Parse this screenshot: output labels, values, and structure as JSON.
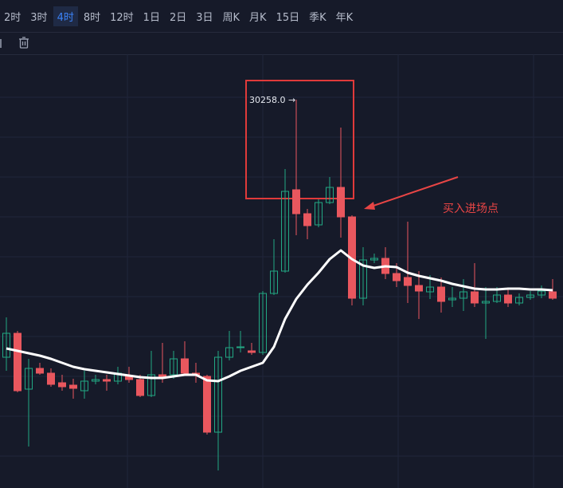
{
  "toolbar": {
    "intervals": [
      "2时",
      "3时",
      "4时",
      "8时",
      "12时",
      "1日",
      "2日",
      "3日",
      "周K",
      "月K",
      "15日",
      "季K",
      "年K"
    ],
    "active": 2
  },
  "chart_data": {
    "type": "candlestick",
    "open": [
      28320,
      28500,
      28080,
      28236,
      28200,
      28128,
      28110,
      28068,
      28140,
      28152,
      28140,
      28176,
      28152,
      28032,
      28188,
      28188,
      28308,
      28200,
      28176,
      27756,
      28320,
      28392,
      28368,
      28356,
      28800,
      28968,
      29580,
      29400,
      29316,
      29484,
      29598,
      29376,
      28764,
      29052,
      29064,
      28950,
      28920,
      28860,
      28812,
      28848,
      28752,
      28764,
      28812,
      28728,
      28740,
      28788,
      28728,
      28770,
      28788,
      28812
    ],
    "close": [
      28500,
      28068,
      28236,
      28200,
      28116,
      28098,
      28086,
      28140,
      28152,
      28140,
      28200,
      28152,
      28032,
      28188,
      28170,
      28308,
      28200,
      28188,
      27756,
      28320,
      28392,
      28398,
      28356,
      28800,
      28968,
      29568,
      29400,
      29310,
      29484,
      29598,
      29376,
      28764,
      29052,
      29064,
      28950,
      28896,
      28860,
      28818,
      28848,
      28740,
      28764,
      28812,
      28728,
      28740,
      28788,
      28728,
      28770,
      28788,
      28818,
      28764
    ],
    "high": [
      28620,
      28518,
      28308,
      28278,
      28236,
      28188,
      28158,
      28218,
      28188,
      28188,
      28248,
      28248,
      28188,
      28368,
      28428,
      28368,
      28440,
      28278,
      28188,
      28368,
      28518,
      28518,
      28428,
      28818,
      29208,
      29736,
      30258,
      29436,
      29508,
      29676,
      30048,
      29388,
      29148,
      29100,
      29148,
      29028,
      29340,
      28968,
      28938,
      28920,
      28848,
      28908,
      29028,
      28848,
      28848,
      28836,
      28800,
      28818,
      28860,
      28908
    ],
    "low": [
      28218,
      28056,
      27648,
      28188,
      28098,
      28068,
      28008,
      28008,
      28116,
      28068,
      28116,
      28128,
      28020,
      28020,
      28128,
      28158,
      28188,
      28128,
      27738,
      27468,
      28296,
      28356,
      28338,
      28338,
      28788,
      28956,
      29238,
      29208,
      29298,
      29472,
      29220,
      28710,
      28710,
      29028,
      28908,
      28848,
      28728,
      28608,
      28758,
      28656,
      28698,
      28668,
      28698,
      28458,
      28728,
      28698,
      28710,
      28752,
      28764,
      28752
    ],
    "up_color": "#22a884",
    "down_color": "#e9575e",
    "ma": {
      "color": "#ffffff",
      "values": [
        28386,
        28368,
        28350,
        28332,
        28308,
        28278,
        28248,
        28230,
        28218,
        28206,
        28194,
        28182,
        28170,
        28164,
        28164,
        28176,
        28188,
        28188,
        28146,
        28140,
        28176,
        28218,
        28248,
        28278,
        28398,
        28608,
        28758,
        28866,
        28956,
        29058,
        29124,
        29058,
        29010,
        28992,
        29004,
        28998,
        28956,
        28932,
        28914,
        28896,
        28872,
        28854,
        28836,
        28830,
        28830,
        28836,
        28836,
        28830,
        28830,
        28824
      ]
    },
    "max_label": {
      "value": 30258,
      "label": "30258.0 →"
    },
    "ylim": [
      27336,
      30618
    ],
    "annotation": {
      "text": "买入进场点",
      "color": "#e84545"
    }
  }
}
